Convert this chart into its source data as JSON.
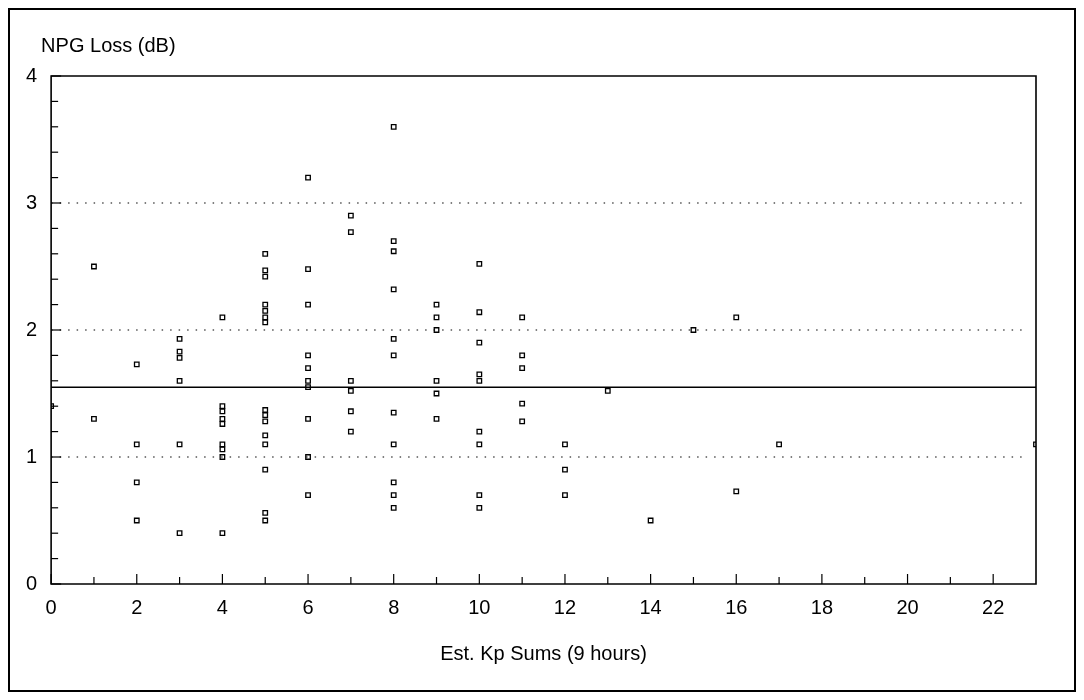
{
  "chart_data": {
    "type": "scatter",
    "ylabel": "NPG Loss (dB)",
    "xlabel": "Est. Kp Sums (9 hours)",
    "series": [
      {
        "color": "#000000",
        "x": [
          0,
          1,
          1,
          2,
          2,
          2,
          2,
          3,
          3,
          3,
          3,
          3,
          3,
          4,
          4,
          4,
          4,
          4,
          4,
          4,
          4,
          4,
          5,
          5,
          5,
          5,
          5,
          5,
          5,
          5,
          5,
          5,
          5,
          5,
          5,
          5,
          5,
          6,
          6,
          6,
          6,
          6,
          6,
          6,
          6,
          6,
          6,
          7,
          7,
          7,
          7,
          7,
          7,
          8,
          8,
          8,
          8,
          8,
          8,
          8,
          8,
          8,
          8,
          8,
          9,
          9,
          9,
          9,
          9,
          9,
          10,
          10,
          10,
          10,
          10,
          10,
          10,
          10,
          10,
          11,
          11,
          11,
          11,
          11,
          12,
          12,
          12,
          13,
          14,
          15,
          16,
          16,
          17,
          23
        ],
        "values": [
          1.4,
          2.5,
          1.3,
          1.73,
          1.1,
          0.8,
          0.5,
          1.93,
          1.83,
          1.78,
          1.6,
          1.1,
          0.4,
          2.1,
          1.4,
          1.36,
          1.3,
          1.26,
          1.1,
          1.06,
          1.0,
          0.4,
          2.6,
          2.47,
          2.42,
          2.2,
          2.15,
          2.1,
          2.06,
          1.37,
          1.33,
          1.28,
          1.17,
          1.1,
          0.9,
          0.56,
          0.5,
          3.2,
          2.48,
          2.2,
          1.8,
          1.7,
          1.6,
          1.55,
          1.3,
          1.0,
          0.7,
          2.9,
          2.77,
          1.6,
          1.52,
          1.36,
          1.2,
          3.6,
          2.7,
          2.62,
          2.32,
          1.93,
          1.8,
          1.35,
          1.1,
          0.8,
          0.7,
          0.6,
          2.2,
          2.1,
          2.0,
          1.6,
          1.5,
          1.3,
          2.52,
          2.14,
          1.9,
          1.65,
          1.6,
          1.2,
          1.1,
          0.7,
          0.6,
          2.1,
          1.8,
          1.7,
          1.42,
          1.28,
          1.1,
          0.9,
          0.7,
          1.52,
          0.5,
          2.0,
          2.1,
          0.73,
          1.1,
          1.1
        ]
      }
    ],
    "xlim": [
      0,
      23
    ],
    "xticks": [
      0,
      {
        "value": 1,
        "label": null
      },
      2,
      {
        "value": 3,
        "label": null
      },
      4,
      {
        "value": 5,
        "label": null
      },
      6,
      {
        "value": 7,
        "label": null
      },
      8,
      {
        "value": 9,
        "label": null
      },
      10,
      {
        "value": 11,
        "label": null
      },
      12,
      {
        "value": 13,
        "label": null
      },
      14,
      {
        "value": 15,
        "label": null
      },
      16,
      {
        "value": 17,
        "label": null
      },
      18,
      {
        "value": 19,
        "label": null
      },
      20,
      {
        "value": 21,
        "label": null
      },
      22
    ],
    "ylim": [
      0,
      4
    ],
    "yticks": [
      0,
      {
        "value": 0.2,
        "label": null
      },
      {
        "value": 0.4,
        "label": null
      },
      {
        "value": 0.6,
        "label": null
      },
      {
        "value": 0.8,
        "label": null
      },
      1,
      {
        "value": 1.2,
        "label": null
      },
      {
        "value": 1.4,
        "label": null
      },
      {
        "value": 1.6,
        "label": null
      },
      {
        "value": 1.8,
        "label": null
      },
      2,
      {
        "value": 2.2,
        "label": null
      },
      {
        "value": 2.4,
        "label": null
      },
      {
        "value": 2.6,
        "label": null
      },
      {
        "value": 2.8,
        "label": null
      },
      3,
      {
        "value": 3.2,
        "label": null
      },
      {
        "value": 3.4,
        "label": null
      },
      {
        "value": 3.6,
        "label": null
      },
      {
        "value": 3.8,
        "label": null
      },
      4
    ],
    "grid": "y",
    "marker": "square",
    "ref_lines": [
      {
        "axis": "y",
        "value": 1.55,
        "color": "#000000",
        "line_style": "solid"
      }
    ]
  }
}
